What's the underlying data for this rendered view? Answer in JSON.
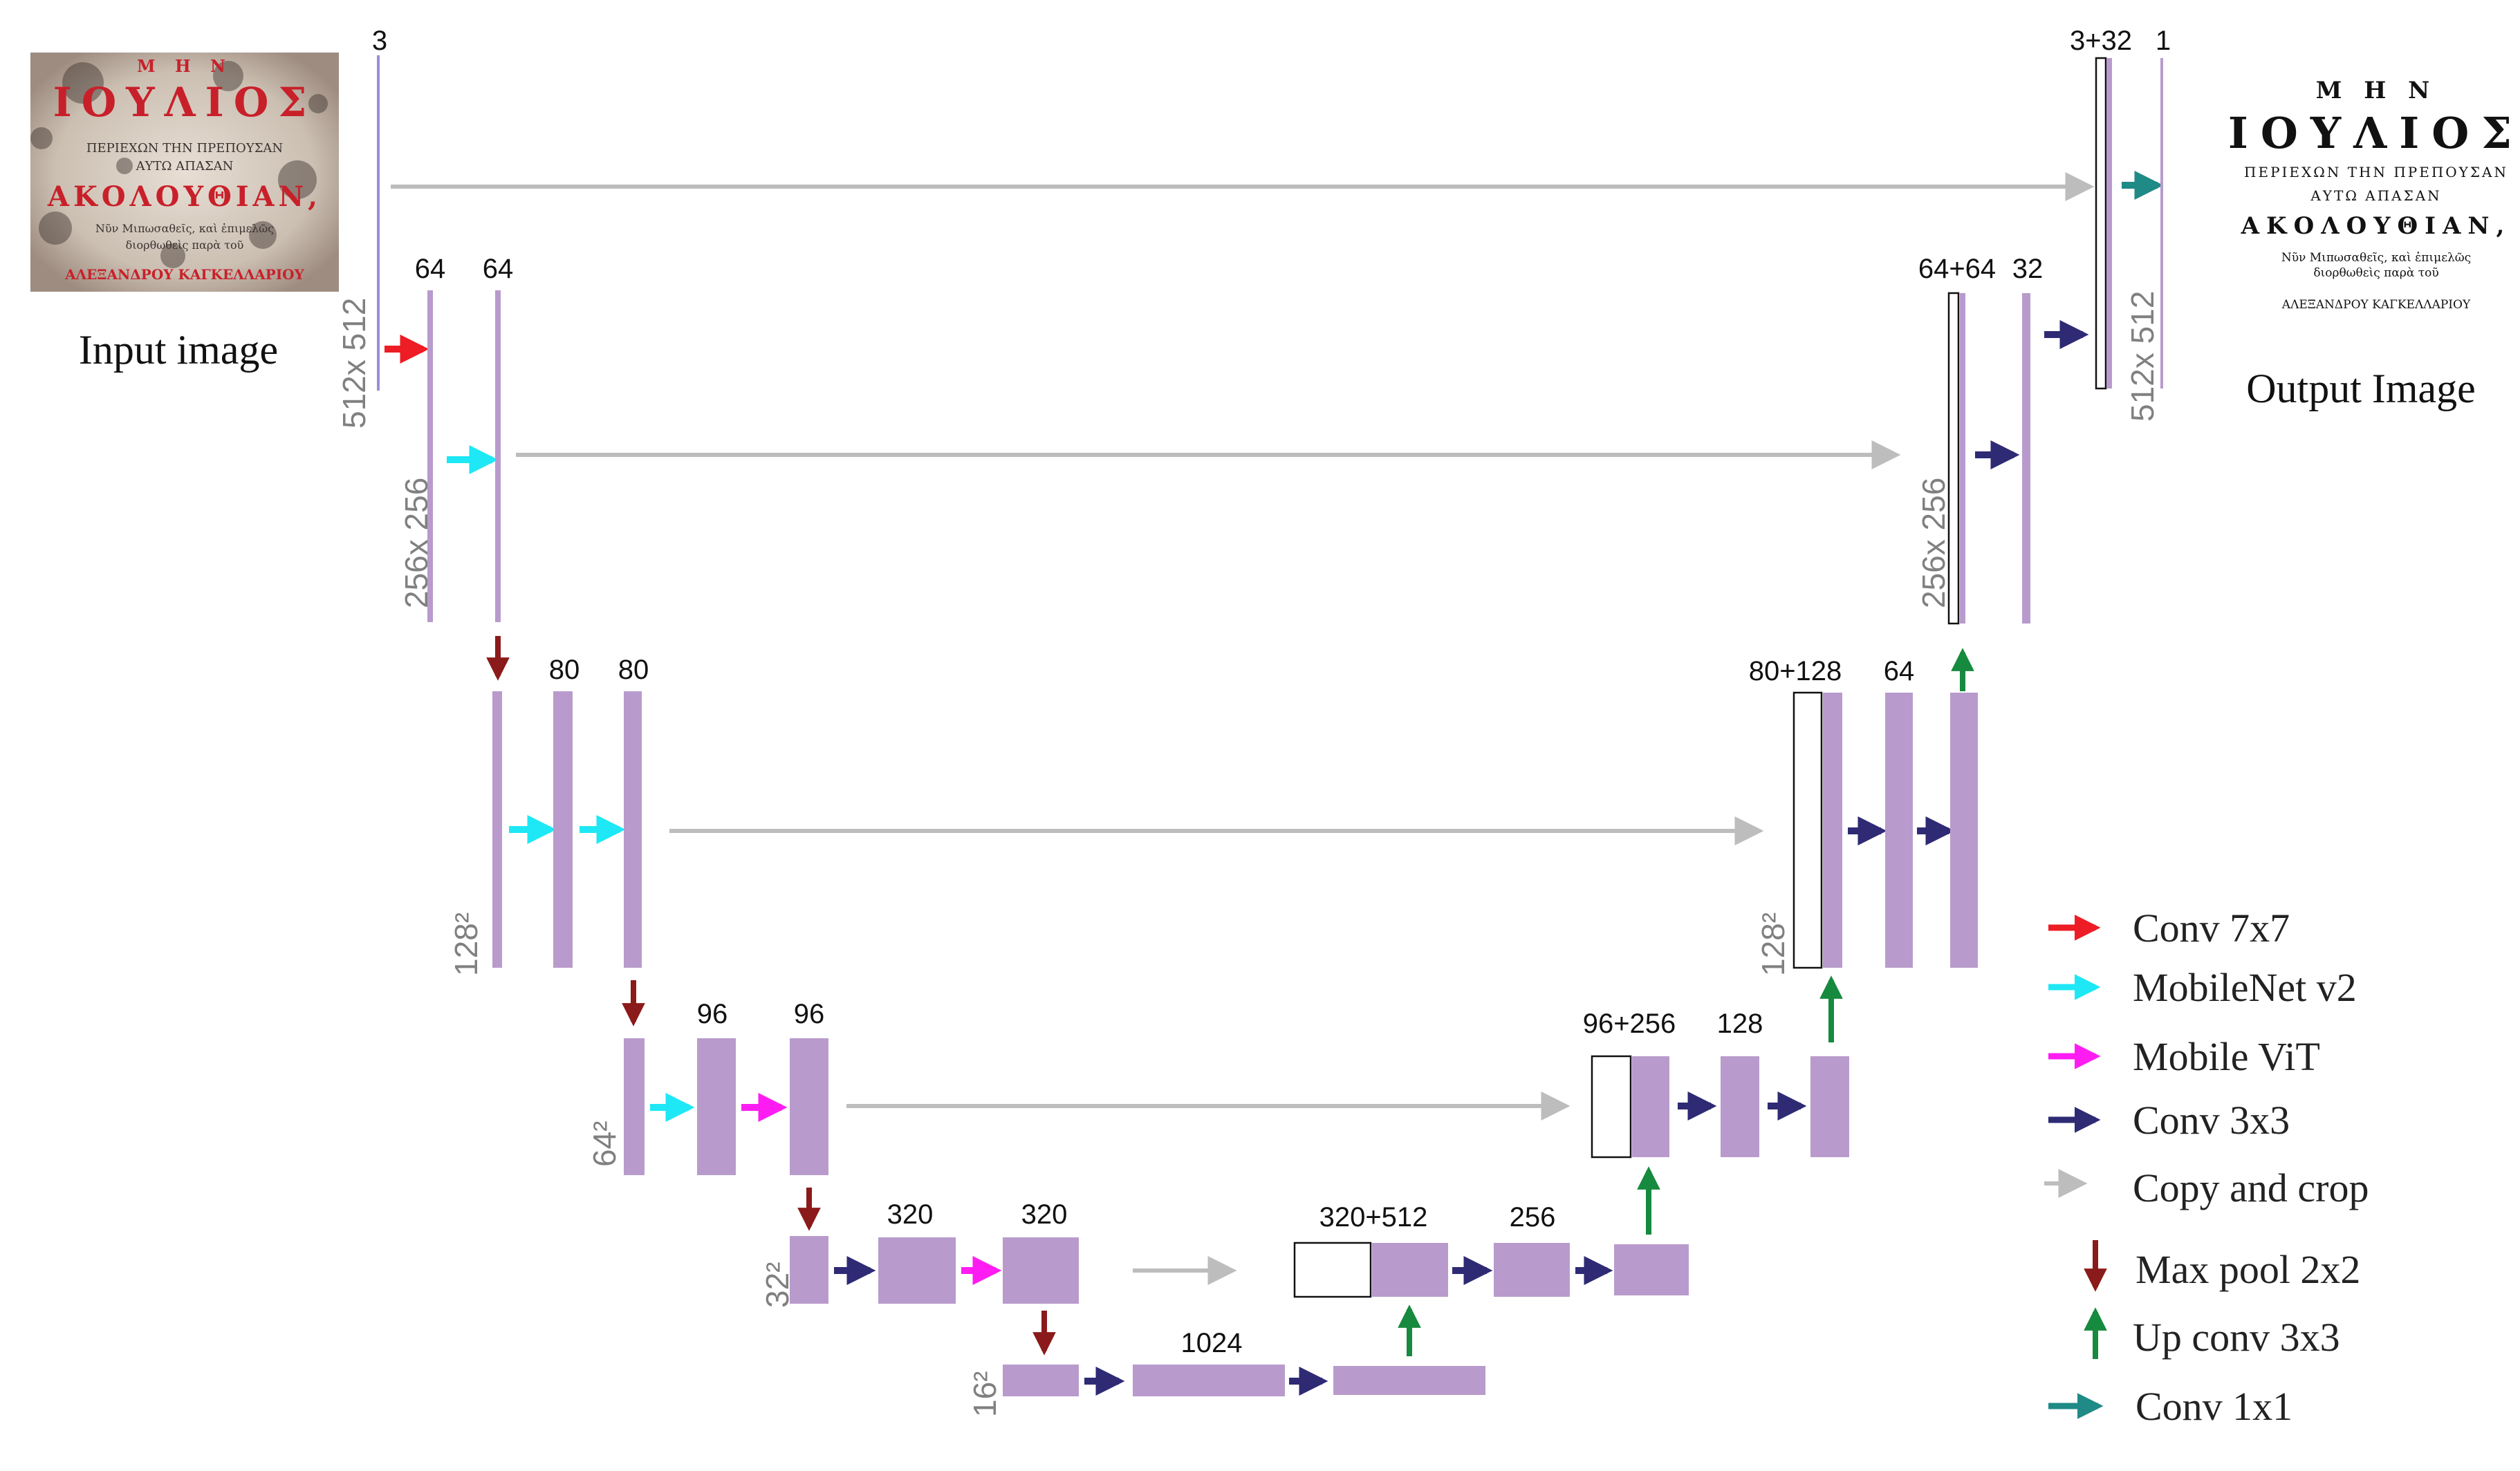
{
  "diagram": {
    "type": "u-net architecture",
    "colors": {
      "block": "#b89bcc",
      "conv7x7": "#ee1c24",
      "mobilenet": "#1ee8f5",
      "mobilevit": "#ff1cf2",
      "conv3x3": "#2e2a74",
      "copy": "#bdbdbd",
      "maxpool": "#8b1a1a",
      "upconv": "#168a3e",
      "conv1x1": "#1f8a86"
    },
    "captions": {
      "input": "Input image",
      "output": "Output Image"
    },
    "channels": {
      "in": "3",
      "e1a": "64",
      "e1b": "64",
      "e2a": "80",
      "e2b": "80",
      "e3a": "96",
      "e3b": "96",
      "e4a": "320",
      "e4b": "320",
      "bottleneck": "1024",
      "d4cat": "320+512",
      "d4": "256",
      "d3cat": "96+256",
      "d3": "128",
      "d2cat": "80+128",
      "d2": "64",
      "d1cat": "64+64",
      "d1": "32",
      "outcat": "3+32",
      "out": "1"
    },
    "resolutions": {
      "r512_left": "512x 512",
      "r256_left": "256x 256",
      "r128_left": "128²",
      "r64": "64²",
      "r32": "32²",
      "r16": "16²",
      "r128_right": "128²",
      "r256_right": "256x 256",
      "r512_right": "512x 512"
    },
    "legend": [
      {
        "label": "Conv 7x7",
        "color": "#ee1c24",
        "icon": "arrow-right"
      },
      {
        "label": "MobileNet v2",
        "color": "#1ee8f5",
        "icon": "arrow-right"
      },
      {
        "label": "Mobile ViT",
        "color": "#ff1cf2",
        "icon": "arrow-right"
      },
      {
        "label": "Conv 3x3",
        "color": "#2e2a74",
        "icon": "arrow-right"
      },
      {
        "label": "Copy and crop",
        "color": "#bdbdbd",
        "icon": "arrow-right"
      },
      {
        "label": "Max pool 2x2",
        "color": "#8b1a1a",
        "icon": "arrow-down"
      },
      {
        "label": "Up conv 3x3",
        "color": "#168a3e",
        "icon": "arrow-up"
      },
      {
        "label": "Conv 1x1",
        "color": "#1f8a86",
        "icon": "arrow-right"
      }
    ],
    "input_image_text": [
      "Μ Η Ν",
      "ΙΟΥΛΙΟΣ",
      "ΠΕΡΙΕΧΩΝ ΤΗΝ ΠΡΕΠΟΥΣΑΝ",
      "ΑΥΤΩ ΑΠΑΣΑΝ",
      "ΑΚΟΛΟΥΘΙΑΝ,",
      "Νῦν Μιπωσαθεῖς, καὶ ἐπιμελῶς",
      "διορθωθεὶς παρὰ τοῦ",
      "ΑΛΕΞΑΝΔΡΟΥ ΚΑΓΚΕΛΛΑΡΙΟΥ"
    ],
    "output_image_text": [
      "Μ Η Ν",
      "ΙΟΥΛΙΟΣ",
      "ΠΕΡΙΕΧΩΝ ΤΗΝ ΠΡΕΠΟΥΣΑΝ",
      "ΑΥΤΩ ΑΠΑΣΑΝ",
      "ΑΚΟΛΟΥΘΙΑΝ,",
      "Νῦν Μιπωσαθεῖς, καὶ ἐπιμελῶς",
      "διορθωθεὶς παρὰ τοῦ",
      "ΑΛΕΞΑΝΔΡΟΥ ΚΑΓΚΕΛΛΑΡΙΟΥ"
    ]
  }
}
